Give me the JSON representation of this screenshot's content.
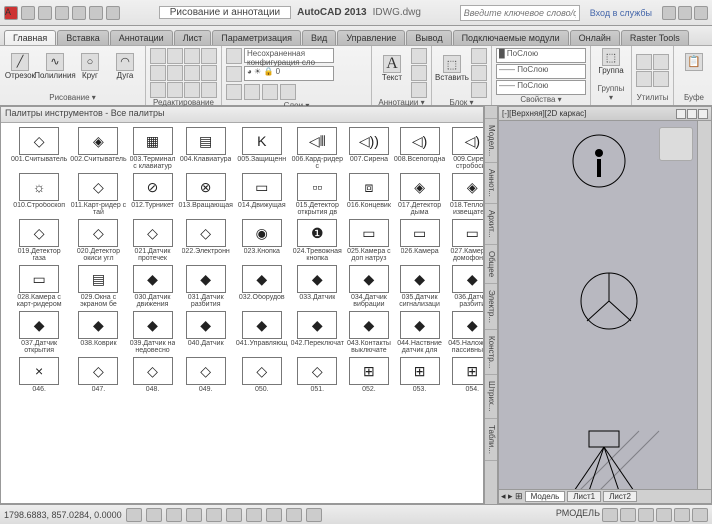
{
  "title": {
    "app": "AutoCAD 2013",
    "doc": "IDWG.dwg",
    "workspace": "Рисование и аннотации",
    "search_ph": "Введите ключевое слово/фразу",
    "signin": "Вход в службы"
  },
  "tabs": [
    "Главная",
    "Вставка",
    "Аннотации",
    "Лист",
    "Параметризация",
    "Вид",
    "Управление",
    "Вывод",
    "Подключаемые модули",
    "Онлайн",
    "Raster Tools"
  ],
  "panels": {
    "draw": {
      "title": "Рисование ▾",
      "btns": [
        {
          "l": "Отрезок",
          "g": "╱"
        },
        {
          "l": "Полилиния",
          "g": "∿"
        },
        {
          "l": "Круг",
          "g": "○"
        },
        {
          "l": "Дуга",
          "g": "◠"
        }
      ]
    },
    "modify": {
      "title": "Редактирование ▾"
    },
    "layers": {
      "title": "Слои ▾",
      "combo": "Несохраненная конфигурация сло"
    },
    "annot": {
      "title": "Аннотации ▾",
      "text": "Текст",
      "t_g": "A"
    },
    "block": {
      "title": "Блок ▾",
      "btn": "Вставить"
    },
    "props": {
      "title": "Свойства ▾",
      "c1": "█ ПоСлою",
      "c2": "—— ПоСлою",
      "c3": "—— ПоСлою"
    },
    "groups": {
      "title": "Группы ▾",
      "btn": "Группа"
    },
    "utils": {
      "title": "Утилиты"
    },
    "clip": {
      "title": "Буфе"
    }
  },
  "palette": {
    "title": "Палитры инструментов - Все палитры",
    "items": [
      {
        "n": "001",
        "l": "Считыватель",
        "g": "◇"
      },
      {
        "n": "002",
        "l": "Считыватель",
        "g": "◈"
      },
      {
        "n": "003",
        "l": "Терминал с клавиатур",
        "g": "▦"
      },
      {
        "n": "004",
        "l": "Клавиатура",
        "g": "▤"
      },
      {
        "n": "005",
        "l": "Защищенн",
        "g": "K"
      },
      {
        "n": "006",
        "l": "Кард-ридер с",
        "g": "◁⦀"
      },
      {
        "n": "007",
        "l": "Сирена",
        "g": "◁))"
      },
      {
        "n": "008",
        "l": "Всепогодна",
        "g": "◁)"
      },
      {
        "n": "009",
        "l": "Сирена стробоско",
        "g": "◁)"
      },
      {
        "n": "010",
        "l": "Стробоскоп",
        "g": "☼"
      },
      {
        "n": "011",
        "l": "Карт-ридер с тай",
        "g": "◇"
      },
      {
        "n": "012",
        "l": "Турникет",
        "g": "⊘"
      },
      {
        "n": "013",
        "l": "Вращающая",
        "g": "⊗"
      },
      {
        "n": "014",
        "l": "Движущая",
        "g": "▭"
      },
      {
        "n": "015",
        "l": "Детектор открытия дв",
        "g": "▫▫"
      },
      {
        "n": "016",
        "l": "Концевик",
        "g": "⧈"
      },
      {
        "n": "017",
        "l": "Детектор дыма",
        "g": "◈"
      },
      {
        "n": "018",
        "l": "Тепловой извещатель",
        "g": "◈"
      },
      {
        "n": "019",
        "l": "Детектор газа",
        "g": "◇"
      },
      {
        "n": "020",
        "l": "Детектор окиси угл",
        "g": "◇"
      },
      {
        "n": "021",
        "l": "Датчик протечек",
        "g": "◇"
      },
      {
        "n": "022",
        "l": "Электронн",
        "g": "◇"
      },
      {
        "n": "023",
        "l": "Кнопка",
        "g": "◉"
      },
      {
        "n": "024",
        "l": "Тревожная кнопка",
        "g": "❶"
      },
      {
        "n": "025",
        "l": "Камера с доп натруз",
        "g": "▭"
      },
      {
        "n": "026",
        "l": "Камера",
        "g": "▭"
      },
      {
        "n": "027",
        "l": "Камера с домофоном",
        "g": "▭"
      },
      {
        "n": "028",
        "l": "Камера с карт-ридером",
        "g": "▭"
      },
      {
        "n": "029",
        "l": "Окна с экраном бе",
        "g": "▤"
      },
      {
        "n": "030",
        "l": "Датчик движения",
        "g": "◆"
      },
      {
        "n": "031",
        "l": "Датчик разбития",
        "g": "◆"
      },
      {
        "n": "032",
        "l": "Оборудов",
        "g": "◆"
      },
      {
        "n": "033",
        "l": "Датчик",
        "g": "◆"
      },
      {
        "n": "034",
        "l": "Датчик вибрации",
        "g": "◆"
      },
      {
        "n": "035",
        "l": "Датчик сигнализаци",
        "g": "◆"
      },
      {
        "n": "036",
        "l": "Датчик разбити",
        "g": "◆"
      },
      {
        "n": "037",
        "l": "Датчик открытия",
        "g": "◆"
      },
      {
        "n": "038",
        "l": "Коврик",
        "g": "◆"
      },
      {
        "n": "039",
        "l": "Датчик на недовесно",
        "g": "◆"
      },
      {
        "n": "040",
        "l": "Датчик",
        "g": "◆"
      },
      {
        "n": "041",
        "l": "Управляющ",
        "g": "◆"
      },
      {
        "n": "042",
        "l": "Переключат",
        "g": "◆"
      },
      {
        "n": "043",
        "l": "Контакты выключате",
        "g": "◆"
      },
      {
        "n": "044",
        "l": "Наствние датчик для",
        "g": "◆"
      },
      {
        "n": "045",
        "l": "Наложены пассивны дв",
        "g": "◆"
      },
      {
        "n": "046",
        "l": "",
        "g": "×"
      },
      {
        "n": "047",
        "l": "",
        "g": "◇"
      },
      {
        "n": "048",
        "l": "",
        "g": "◇"
      },
      {
        "n": "049",
        "l": "",
        "g": "◇"
      },
      {
        "n": "050",
        "l": "",
        "g": "◇"
      },
      {
        "n": "051",
        "l": "",
        "g": "◇"
      },
      {
        "n": "052",
        "l": "",
        "g": "⊞"
      },
      {
        "n": "053",
        "l": "",
        "g": "⊞"
      },
      {
        "n": "054",
        "l": "",
        "g": "⊞"
      }
    ]
  },
  "viewport": {
    "title": "[-][Верхняя][2D каркас]",
    "sheets": [
      "Модель",
      "Лист1",
      "Лист2"
    ]
  },
  "sidetabs": [
    "",
    "Модел...",
    "Аннот...",
    "Архит...",
    "Общее",
    "Электр...",
    "Констр...",
    "Штрих...",
    "Табли..."
  ],
  "status": {
    "coords": "1798.6883, 857.0284, 0.0000",
    "right": "РМОДЕЛЬ"
  }
}
